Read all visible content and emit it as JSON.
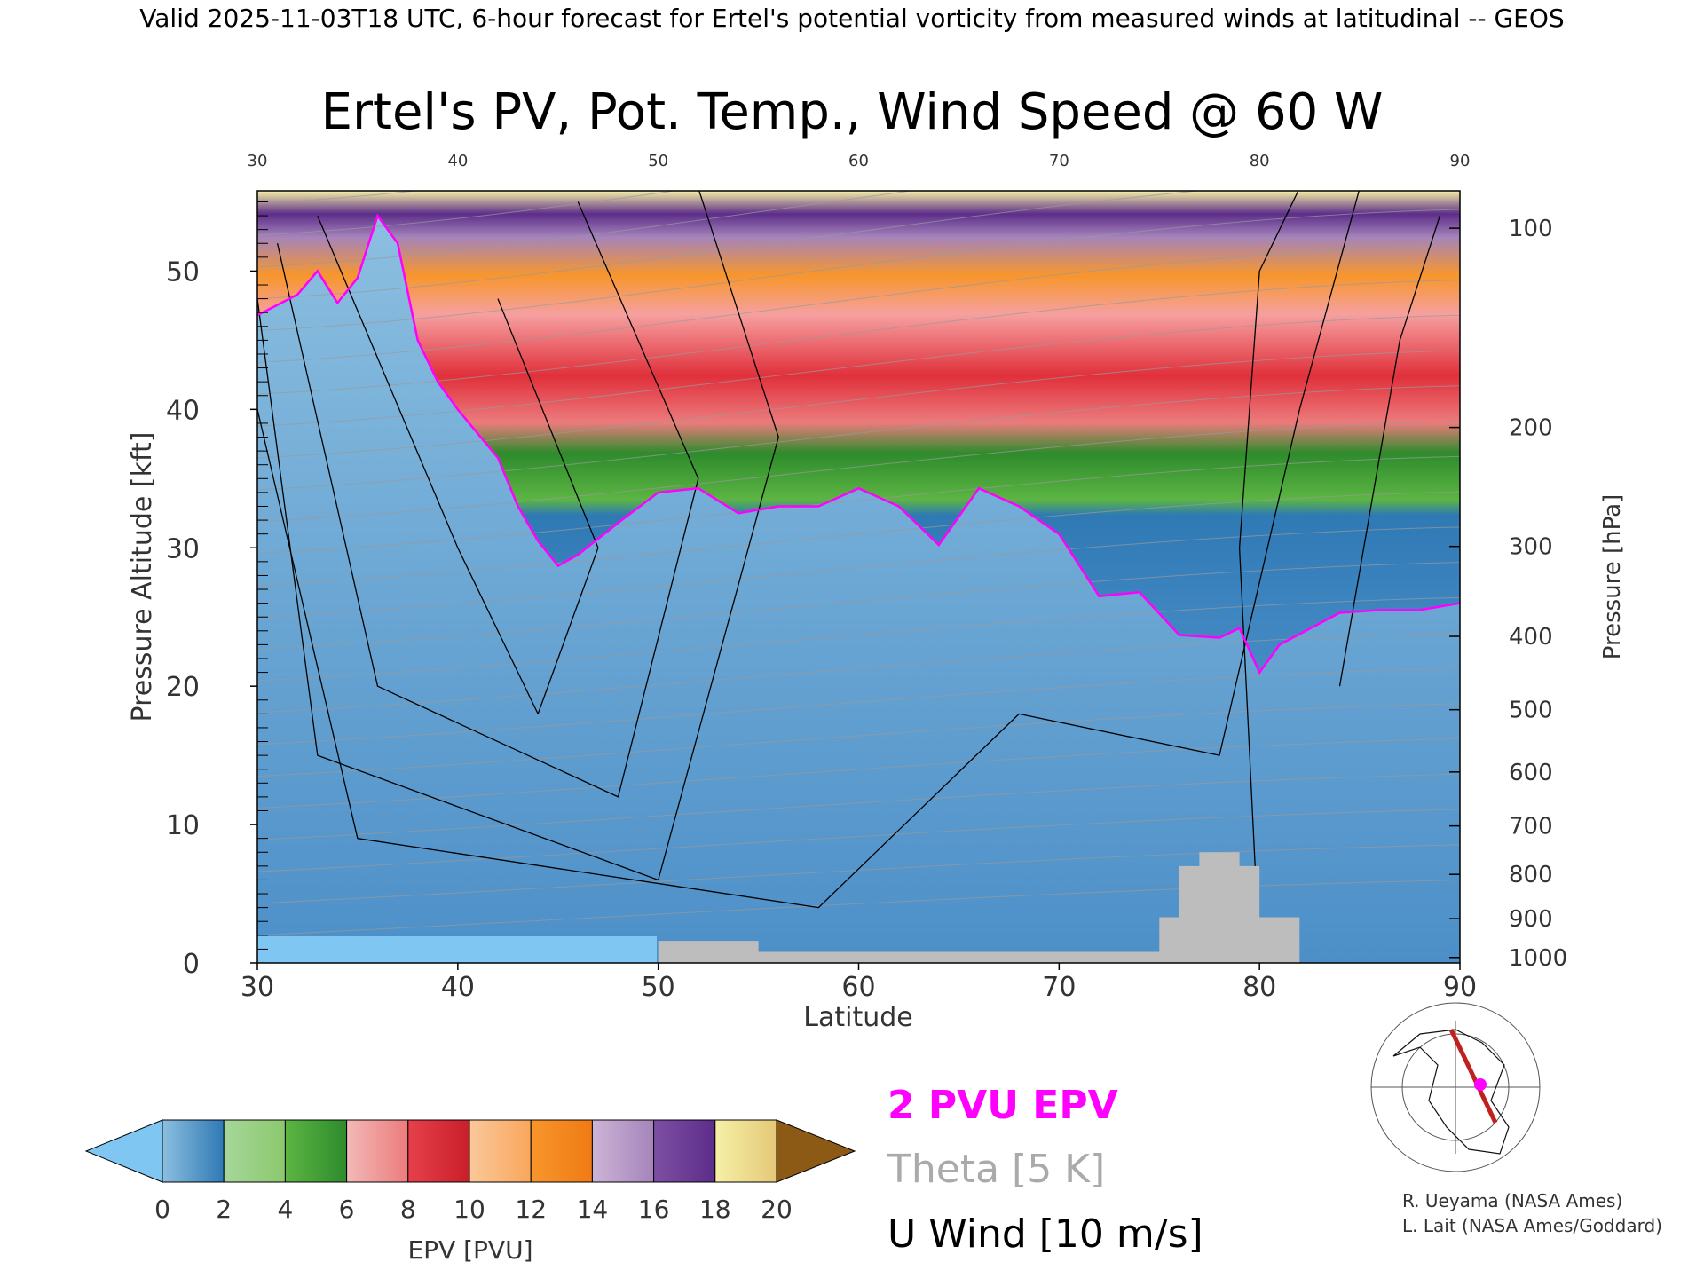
{
  "header": {
    "valid_line": "Valid 2025-11-03T18 UTC, 6-hour forecast for Ertel's potential vorticity from measured winds at latitudinal -- GEOS"
  },
  "chart_data": {
    "type": "heatmap",
    "title": "Ertel's PV, Pot. Temp., Wind Speed @ 60 W",
    "xlabel": "Latitude",
    "ylabel": "Pressure Altitude [kft]",
    "y2label": "Pressure [hPa]",
    "xlim": [
      30,
      90
    ],
    "ylim": [
      0,
      55.8
    ],
    "x_ticks": [
      "30",
      "40",
      "50",
      "60",
      "70",
      "80",
      "90"
    ],
    "y_ticks": [
      "0",
      "10",
      "20",
      "30",
      "40",
      "50"
    ],
    "pressure_ticks": [
      {
        "label": "100",
        "kft": 53.1
      },
      {
        "label": "200",
        "kft": 38.7
      },
      {
        "label": "300",
        "kft": 30.1
      },
      {
        "label": "400",
        "kft": 23.6
      },
      {
        "label": "500",
        "kft": 18.3
      },
      {
        "label": "600",
        "kft": 13.8
      },
      {
        "label": "700",
        "kft": 9.9
      },
      {
        "label": "800",
        "kft": 6.4
      },
      {
        "label": "900",
        "kft": 3.2
      },
      {
        "label": "1000",
        "kft": 0.4
      }
    ],
    "colorbar": {
      "label": "EPV [PVU]",
      "ticks": [
        "0",
        "2",
        "4",
        "6",
        "8",
        "10",
        "12",
        "14",
        "16",
        "18",
        "20"
      ],
      "under_color": "#7fc6f3",
      "over_color": "#8c5a14",
      "segments": [
        {
          "from": 0,
          "to": 2,
          "colors": [
            "#8cbfe0",
            "#2f79b4"
          ]
        },
        {
          "from": 2,
          "to": 4,
          "colors": [
            "#a6d79a",
            "#8bc86d"
          ]
        },
        {
          "from": 4,
          "to": 6,
          "colors": [
            "#5cb543",
            "#2e8b2c"
          ]
        },
        {
          "from": 6,
          "to": 8,
          "colors": [
            "#f2b9b7",
            "#ec7b7c"
          ]
        },
        {
          "from": 8,
          "to": 10,
          "colors": [
            "#e6404a",
            "#c91f2a"
          ]
        },
        {
          "from": 10,
          "to": 12,
          "colors": [
            "#fbc89a",
            "#f9a65c"
          ]
        },
        {
          "from": 12,
          "to": 14,
          "colors": [
            "#f7962c",
            "#f07a13"
          ]
        },
        {
          "from": 14,
          "to": 16,
          "colors": [
            "#cdb4d6",
            "#a584bb"
          ]
        },
        {
          "from": 16,
          "to": 18,
          "colors": [
            "#7d4fa3",
            "#5c2d89"
          ]
        },
        {
          "from": 18,
          "to": 20,
          "colors": [
            "#f6f0a6",
            "#e4c878"
          ]
        }
      ]
    },
    "tropopause_2pvu_kft": [
      [
        30,
        46.8
      ],
      [
        32,
        48.3
      ],
      [
        33,
        50.0
      ],
      [
        34,
        47.7
      ],
      [
        35,
        49.5
      ],
      [
        36,
        54.0
      ],
      [
        37,
        52.0
      ],
      [
        38,
        45.0
      ],
      [
        39,
        42.0
      ],
      [
        40,
        40.0
      ],
      [
        42,
        36.5
      ],
      [
        43,
        33.0
      ],
      [
        44,
        30.5
      ],
      [
        45,
        28.7
      ],
      [
        46,
        29.5
      ],
      [
        48,
        31.8
      ],
      [
        50,
        34.0
      ],
      [
        52,
        34.3
      ],
      [
        54,
        32.5
      ],
      [
        56,
        33.0
      ],
      [
        58,
        33.0
      ],
      [
        60,
        34.3
      ],
      [
        62,
        33.0
      ],
      [
        64,
        30.2
      ],
      [
        66,
        34.3
      ],
      [
        68,
        33.0
      ],
      [
        70,
        31.0
      ],
      [
        72,
        26.5
      ],
      [
        74,
        26.8
      ],
      [
        76,
        23.7
      ],
      [
        78,
        23.5
      ],
      [
        79,
        24.2
      ],
      [
        80,
        21.0
      ],
      [
        81,
        23.0
      ],
      [
        84,
        25.3
      ],
      [
        86,
        25.5
      ],
      [
        88,
        25.5
      ],
      [
        90,
        26.0
      ]
    ],
    "u_wind_jet_core_ms": 70,
    "u_wind_contours": [
      "0",
      "10",
      "30",
      "50",
      "70"
    ],
    "terrain_note": "Grey blocks mark terrain near 50-90 N",
    "legend": {
      "epv_line": "2 PVU EPV",
      "epv_line_color": "#ff00ff",
      "theta": "Theta [5 K]",
      "theta_color": "#aaaaaa",
      "uwind": "U Wind [10 m/s]"
    }
  },
  "credits": {
    "line1": "R. Ueyama (NASA Ames)",
    "line2": "L. Lait (NASA Ames/Goddard)"
  },
  "map": {
    "marker_color": "#ff00ff",
    "section_color": "#c0201e"
  }
}
